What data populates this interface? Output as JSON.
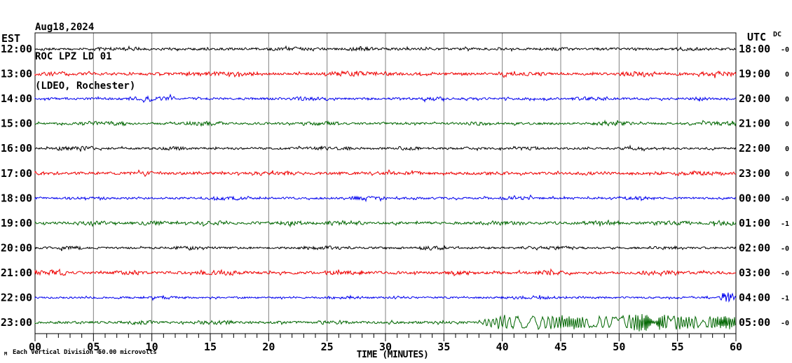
{
  "header": {
    "date": "Aug18,2024",
    "station": "ROC LPZ LD 01",
    "location": "(LDEO, Rochester)"
  },
  "axes": {
    "left_tz": "EST",
    "right_tz": "UTC",
    "dc_header": "DC",
    "x_title": "TIME (MINUTES)",
    "x_ticks": [
      "00",
      "05",
      "10",
      "15",
      "20",
      "25",
      "30",
      "35",
      "40",
      "45",
      "50",
      "55",
      "60"
    ],
    "x_range": [
      0,
      60
    ],
    "minor_tick_every_minutes": 1,
    "major_tick_every_minutes": 5,
    "grid": "on"
  },
  "footer": {
    "marker": "M",
    "scale_note": "Each Vertical Division =",
    "scale_value": "50.00 microvolts"
  },
  "colors": {
    "background": "#ffffff",
    "border": "#000000",
    "grid": "#808080",
    "text": "#000000",
    "trace_cycle": [
      "#000000",
      "#ee0000",
      "#0000ee",
      "#006600"
    ]
  },
  "chart_data": {
    "type": "line",
    "subtype": "helicorder-seismogram",
    "title": "ROC LPZ LD 01 (LDEO, Rochester) Aug18,2024",
    "xlabel": "TIME (MINUTES)",
    "x_range": [
      0,
      60
    ],
    "rows_are": "one hour of seismic trace per row, amplitudes in plot pixels (1 vertical division = 50.00 microvolts)",
    "rows": [
      {
        "est": "12:00",
        "utc": "18:00",
        "dc": "-0",
        "color": "#000000",
        "seed": 101,
        "noise_amp": 2.0,
        "bursts": [
          {
            "s": 5,
            "e": 9,
            "a": 3.2
          },
          {
            "s": 20,
            "e": 24,
            "a": 3.0
          },
          {
            "s": 27,
            "e": 29,
            "a": 3.5
          },
          {
            "s": 44,
            "e": 46,
            "a": 3.0
          },
          {
            "s": 55,
            "e": 57,
            "a": 3.2
          }
        ],
        "event": null
      },
      {
        "est": "13:00",
        "utc": "19:00",
        "dc": "0",
        "color": "#ee0000",
        "seed": 202,
        "noise_amp": 2.2,
        "bursts": [
          {
            "s": 0,
            "e": 3,
            "a": 3.5
          },
          {
            "s": 13,
            "e": 19,
            "a": 3.5
          },
          {
            "s": 25,
            "e": 31,
            "a": 4.0
          },
          {
            "s": 40,
            "e": 44,
            "a": 3.0
          },
          {
            "s": 50,
            "e": 53,
            "a": 4.0
          },
          {
            "s": 57,
            "e": 60,
            "a": 4.0
          }
        ],
        "event": null
      },
      {
        "est": "14:00",
        "utc": "20:00",
        "dc": "0",
        "color": "#0000ee",
        "seed": 303,
        "noise_amp": 1.8,
        "bursts": [
          {
            "s": 8,
            "e": 12,
            "a": 3.5
          },
          {
            "s": 22,
            "e": 25,
            "a": 3.0
          },
          {
            "s": 33,
            "e": 35,
            "a": 3.0
          },
          {
            "s": 46,
            "e": 49,
            "a": 3.0
          },
          {
            "s": 56,
            "e": 58,
            "a": 3.0
          }
        ],
        "event": null
      },
      {
        "est": "15:00",
        "utc": "21:00",
        "dc": "0",
        "color": "#006600",
        "seed": 404,
        "noise_amp": 1.8,
        "bursts": [
          {
            "s": 4,
            "e": 8,
            "a": 3.5
          },
          {
            "s": 13,
            "e": 16,
            "a": 3.5
          },
          {
            "s": 23,
            "e": 26,
            "a": 3.0
          },
          {
            "s": 37,
            "e": 39,
            "a": 3.0
          },
          {
            "s": 48,
            "e": 51,
            "a": 3.5
          },
          {
            "s": 57,
            "e": 60,
            "a": 3.5
          }
        ],
        "event": null
      },
      {
        "est": "16:00",
        "utc": "22:00",
        "dc": "0",
        "color": "#000000",
        "seed": 505,
        "noise_amp": 1.8,
        "bursts": [
          {
            "s": 2,
            "e": 5,
            "a": 3.5
          },
          {
            "s": 11,
            "e": 13,
            "a": 3.0
          },
          {
            "s": 24,
            "e": 27,
            "a": 3.0
          },
          {
            "s": 31,
            "e": 33,
            "a": 3.0
          },
          {
            "s": 41,
            "e": 43,
            "a": 3.0
          },
          {
            "s": 50,
            "e": 52,
            "a": 3.0
          }
        ],
        "event": null
      },
      {
        "est": "17:00",
        "utc": "23:00",
        "dc": "0",
        "color": "#ee0000",
        "seed": 606,
        "noise_amp": 2.2,
        "bursts": [
          {
            "s": 0,
            "e": 2,
            "a": 3.0
          },
          {
            "s": 8,
            "e": 10,
            "a": 3.0
          },
          {
            "s": 19,
            "e": 22,
            "a": 3.5
          },
          {
            "s": 30,
            "e": 33,
            "a": 3.0
          },
          {
            "s": 38,
            "e": 40,
            "a": 3.0
          },
          {
            "s": 47,
            "e": 49,
            "a": 3.0
          },
          {
            "s": 55,
            "e": 58,
            "a": 3.5
          }
        ],
        "event": null
      },
      {
        "est": "18:00",
        "utc": "00:00",
        "dc": "-0",
        "color": "#0000ee",
        "seed": 707,
        "noise_amp": 1.7,
        "bursts": [
          {
            "s": 4,
            "e": 6,
            "a": 2.5
          },
          {
            "s": 15,
            "e": 18,
            "a": 3.0
          },
          {
            "s": 27,
            "e": 30,
            "a": 3.0
          },
          {
            "s": 40,
            "e": 43,
            "a": 3.0
          },
          {
            "s": 50,
            "e": 53,
            "a": 3.0
          }
        ],
        "event": null
      },
      {
        "est": "19:00",
        "utc": "01:00",
        "dc": "-1",
        "color": "#006600",
        "seed": 808,
        "noise_amp": 2.0,
        "bursts": [
          {
            "s": 4,
            "e": 6,
            "a": 3.5
          },
          {
            "s": 9,
            "e": 11,
            "a": 3.5
          },
          {
            "s": 14,
            "e": 16,
            "a": 4.0
          },
          {
            "s": 20,
            "e": 23,
            "a": 3.5
          },
          {
            "s": 25,
            "e": 28,
            "a": 4.0
          },
          {
            "s": 38,
            "e": 41,
            "a": 3.5
          },
          {
            "s": 47,
            "e": 50,
            "a": 3.5
          },
          {
            "s": 53,
            "e": 56,
            "a": 3.5
          },
          {
            "s": 58,
            "e": 60,
            "a": 4.0
          }
        ],
        "event": null
      },
      {
        "est": "20:00",
        "utc": "02:00",
        "dc": "-0",
        "color": "#000000",
        "seed": 909,
        "noise_amp": 1.8,
        "bursts": [
          {
            "s": 2,
            "e": 4,
            "a": 3.0
          },
          {
            "s": 12,
            "e": 14,
            "a": 3.5
          },
          {
            "s": 23,
            "e": 26,
            "a": 3.0
          },
          {
            "s": 33,
            "e": 35,
            "a": 3.5
          },
          {
            "s": 44,
            "e": 46,
            "a": 3.0
          },
          {
            "s": 53,
            "e": 55,
            "a": 3.0
          }
        ],
        "event": null
      },
      {
        "est": "21:00",
        "utc": "03:00",
        "dc": "-0",
        "color": "#ee0000",
        "seed": 111,
        "noise_amp": 2.2,
        "bursts": [
          {
            "s": 0,
            "e": 2.5,
            "a": 4.5
          },
          {
            "s": 7,
            "e": 9,
            "a": 3.5
          },
          {
            "s": 14,
            "e": 17,
            "a": 4.0
          },
          {
            "s": 25,
            "e": 28,
            "a": 3.5
          },
          {
            "s": 35,
            "e": 38,
            "a": 3.5
          },
          {
            "s": 43,
            "e": 45,
            "a": 4.0
          },
          {
            "s": 52,
            "e": 55,
            "a": 4.0
          }
        ],
        "event": null
      },
      {
        "est": "22:00",
        "utc": "04:00",
        "dc": "-1",
        "color": "#0000ee",
        "seed": 222,
        "noise_amp": 1.5,
        "bursts": [
          {
            "s": 10,
            "e": 13,
            "a": 2.5
          },
          {
            "s": 25,
            "e": 28,
            "a": 2.5
          },
          {
            "s": 40,
            "e": 44,
            "a": 2.5
          },
          {
            "s": 58.9,
            "e": 59.6,
            "a": 9.0
          }
        ],
        "event": null
      },
      {
        "est": "23:00",
        "utc": "05:00",
        "dc": "-0",
        "color": "#006600",
        "seed": 333,
        "noise_amp": 2.0,
        "bursts": [
          {
            "s": 8,
            "e": 10,
            "a": 3.5
          },
          {
            "s": 14,
            "e": 17,
            "a": 3.5
          },
          {
            "s": 24,
            "e": 27,
            "a": 3.0
          }
        ],
        "event": {
          "start": 37.5,
          "period": 0.45,
          "env": [
            [
              37.5,
              0
            ],
            [
              39,
              6
            ],
            [
              40.5,
              9
            ],
            [
              43,
              8
            ],
            [
              45.5,
              9
            ],
            [
              47,
              7
            ],
            [
              49,
              8
            ],
            [
              51,
              10
            ],
            [
              52,
              13
            ],
            [
              53.5,
              10
            ],
            [
              55,
              8
            ],
            [
              56.5,
              7
            ],
            [
              58,
              8.5
            ],
            [
              60,
              7
            ]
          ]
        }
      }
    ]
  }
}
